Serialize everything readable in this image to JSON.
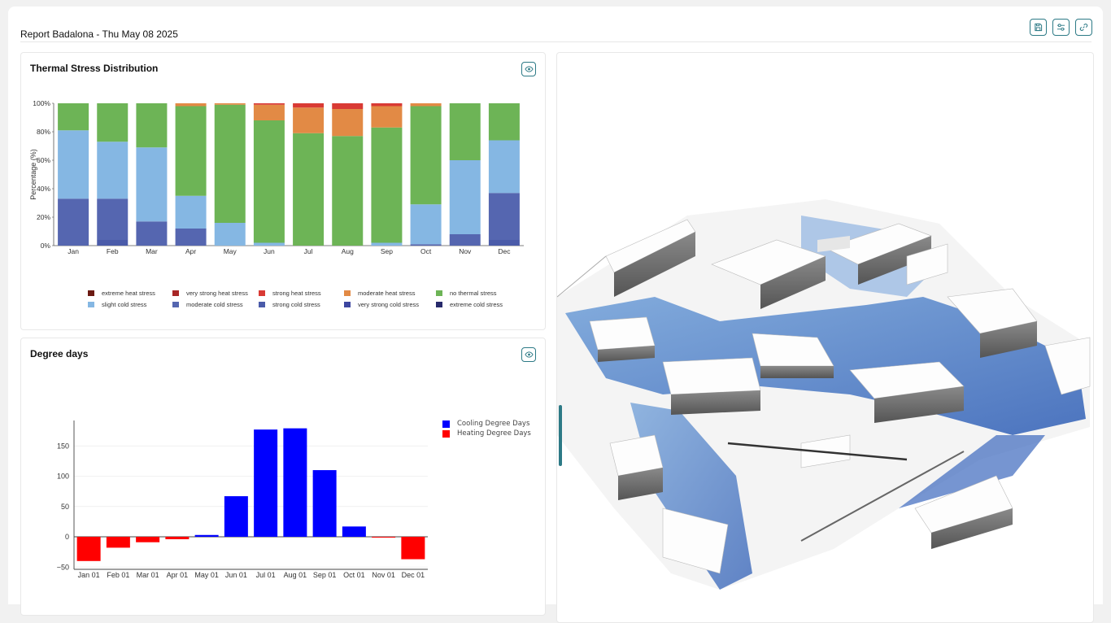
{
  "header": {
    "title": "Report Badalona - Thu May 08 2025",
    "buttons": [
      {
        "name": "save",
        "icon": "save-icon"
      },
      {
        "name": "settings",
        "icon": "sliders-icon"
      },
      {
        "name": "share",
        "icon": "link-icon"
      }
    ]
  },
  "colors": {
    "accent": "#2d7a86",
    "extreme_heat": "#6b1a12",
    "very_strong_heat": "#a82626",
    "strong_heat": "#d93a34",
    "moderate_heat": "#e28a45",
    "no_thermal": "#6db456",
    "slight_cold": "#85b7e3",
    "moderate_cold": "#5566b0",
    "strong_cold": "#4a5ba9",
    "very_strong_cold": "#3d46a0",
    "extreme_cold": "#272a6b",
    "cooling": "#0000ff",
    "heating": "#ff0000"
  },
  "thermal_panel": {
    "title": "Thermal Stress Distribution",
    "toggle_icon": "eye-icon",
    "legend": [
      {
        "label": "extreme heat stress",
        "color": "#6b1a12"
      },
      {
        "label": "very strong heat stress",
        "color": "#a82626"
      },
      {
        "label": "strong heat stress",
        "color": "#d93a34"
      },
      {
        "label": "moderate heat stress",
        "color": "#e28a45"
      },
      {
        "label": "no thermal stress",
        "color": "#6db456"
      },
      {
        "label": "slight cold stress",
        "color": "#85b7e3"
      },
      {
        "label": "moderate cold stress",
        "color": "#5566b0"
      },
      {
        "label": "strong cold stress",
        "color": "#4a5ba9"
      },
      {
        "label": "very strong cold stress",
        "color": "#3d46a0"
      },
      {
        "label": "extreme cold stress",
        "color": "#272a6b"
      }
    ]
  },
  "degree_panel": {
    "title": "Degree days",
    "toggle_icon": "eye-icon",
    "legend": [
      {
        "label": "Cooling Degree Days",
        "color": "#0000ff"
      },
      {
        "label": "Heating Degree Days",
        "color": "#ff0000"
      }
    ]
  },
  "map_panel": {
    "description_icon": "3d-city-map"
  },
  "chart_data": [
    {
      "type": "bar",
      "stacked": true,
      "title": "Thermal Stress Distribution",
      "ylabel": "Percentage (%)",
      "xlabel": "",
      "ylim": [
        0,
        100
      ],
      "yticks": [
        "0%",
        "20%",
        "40%",
        "60%",
        "80%",
        "100%"
      ],
      "categories": [
        "Jan",
        "Feb",
        "Mar",
        "Apr",
        "May",
        "Jun",
        "Jul",
        "Aug",
        "Sep",
        "Oct",
        "Nov",
        "Dec"
      ],
      "series": [
        {
          "name": "strong cold stress",
          "color": "#4a5ba9",
          "values": [
            0,
            4,
            0,
            0,
            0,
            0,
            0,
            0,
            0,
            0,
            0,
            4
          ]
        },
        {
          "name": "moderate cold stress",
          "color": "#5566b0",
          "values": [
            33,
            29,
            17,
            12,
            0,
            0,
            0,
            0,
            0,
            1,
            8,
            33
          ]
        },
        {
          "name": "slight cold stress",
          "color": "#85b7e3",
          "values": [
            48,
            40,
            52,
            23,
            16,
            2,
            0,
            0,
            2,
            28,
            52,
            37
          ]
        },
        {
          "name": "no thermal stress",
          "color": "#6db456",
          "values": [
            19,
            27,
            31,
            63,
            83,
            86,
            79,
            77,
            81,
            69,
            40,
            26
          ]
        },
        {
          "name": "moderate heat stress",
          "color": "#e28a45",
          "values": [
            0,
            0,
            0,
            2,
            1,
            11,
            18,
            19,
            15,
            2,
            0,
            0
          ]
        },
        {
          "name": "strong heat stress",
          "color": "#d93a34",
          "values": [
            0,
            0,
            0,
            0,
            0,
            1,
            3,
            4,
            2,
            0,
            0,
            0
          ]
        }
      ]
    },
    {
      "type": "bar",
      "title": "",
      "xlabel": "",
      "ylabel": "",
      "ylim": [
        -50,
        185
      ],
      "yticks": [
        -50,
        0,
        50,
        100,
        150
      ],
      "categories": [
        "Jan 01",
        "Feb 01",
        "Mar 01",
        "Apr 01",
        "May 01",
        "Jun 01",
        "Jul 01",
        "Aug 01",
        "Sep 01",
        "Oct 01",
        "Nov 01",
        "Dec 01"
      ],
      "series": [
        {
          "name": "Cooling Degree Days",
          "color": "#0000ff",
          "values": [
            0,
            0,
            0,
            0,
            3,
            67,
            177,
            179,
            110,
            17,
            0,
            0
          ]
        },
        {
          "name": "Heating Degree Days",
          "color": "#ff0000",
          "values": [
            -40,
            -18,
            -9,
            -4,
            0,
            0,
            0,
            0,
            0,
            0,
            -1,
            -37
          ]
        }
      ]
    }
  ]
}
